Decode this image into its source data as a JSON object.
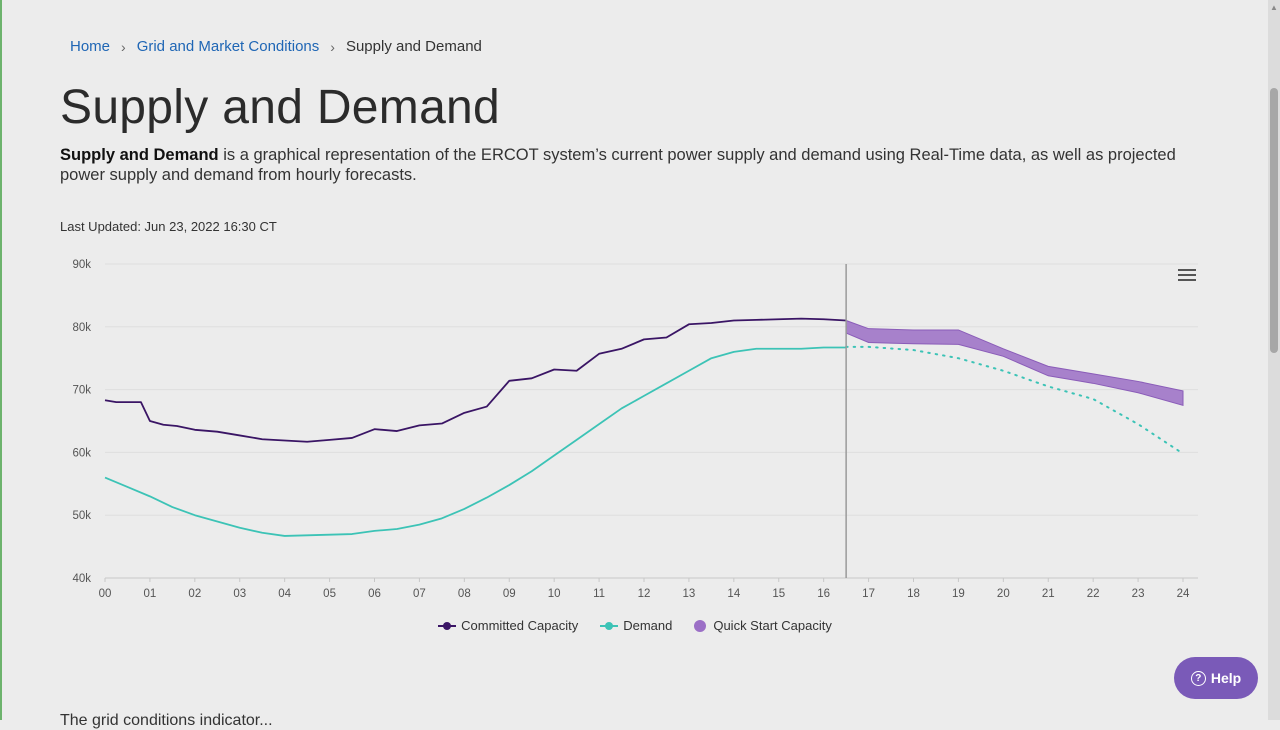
{
  "breadcrumb": {
    "home": "Home",
    "parent": "Grid and Market Conditions",
    "current": "Supply and Demand"
  },
  "page": {
    "title": "Supply and Demand",
    "intro_bold": "Supply and Demand",
    "intro_rest": " is a graphical representation of the ERCOT system’s current power supply and demand using Real-Time data, as well as projected power supply and demand from hourly forecasts.",
    "last_updated": "Last Updated: Jun 23, 2022 16:30 CT",
    "bottom_text": "The   grid conditions indicator...",
    "help_label": "Help"
  },
  "colors": {
    "committed": "#3a1565",
    "demand": "#3cc3b6",
    "quick_start": "#9b6fc6",
    "accent": "#7a5ab8"
  },
  "chart_data": {
    "type": "line",
    "x_ticks": [
      "00",
      "01",
      "02",
      "03",
      "04",
      "05",
      "06",
      "07",
      "08",
      "09",
      "10",
      "11",
      "12",
      "13",
      "14",
      "15",
      "16",
      "17",
      "18",
      "19",
      "20",
      "21",
      "22",
      "23",
      "24"
    ],
    "y_ticks": [
      "40k",
      "50k",
      "60k",
      "70k",
      "80k",
      "90k"
    ],
    "xlim": [
      0,
      24
    ],
    "ylim": [
      40000,
      90000
    ],
    "grid": "horizontal",
    "current_time_hour": 16.5,
    "legend_position": "bottom-center",
    "series": [
      {
        "name": "Committed Capacity",
        "style": "line",
        "color": "#3a1565",
        "x": [
          0,
          0.25,
          0.5,
          0.8,
          1.0,
          1.3,
          1.6,
          2.0,
          2.5,
          3.0,
          3.5,
          4.0,
          4.5,
          5.0,
          5.5,
          6.0,
          6.5,
          7.0,
          7.5,
          8.0,
          8.5,
          9.0,
          9.5,
          10.0,
          10.5,
          11.0,
          11.5,
          12.0,
          12.5,
          13.0,
          13.5,
          14.0,
          14.5,
          15.0,
          15.5,
          16.0,
          16.5
        ],
        "y": [
          68300,
          68000,
          68000,
          68000,
          65000,
          64400,
          64200,
          63600,
          63300,
          62700,
          62100,
          61900,
          61700,
          62000,
          62300,
          63700,
          63400,
          64300,
          64600,
          66300,
          67300,
          71400,
          71800,
          73200,
          73000,
          75700,
          76500,
          78000,
          78300,
          80400,
          80600,
          81000,
          81100,
          81200,
          81300,
          81200,
          81000
        ]
      },
      {
        "name": "Demand",
        "style": "line",
        "color": "#3cc3b6",
        "x": [
          0,
          0.5,
          1.0,
          1.5,
          2.0,
          2.5,
          3.0,
          3.5,
          4.0,
          4.5,
          5.0,
          5.5,
          6.0,
          6.5,
          7.0,
          7.5,
          8.0,
          8.5,
          9.0,
          9.5,
          10.0,
          10.5,
          11.0,
          11.5,
          12.0,
          12.5,
          13.0,
          13.5,
          14.0,
          14.5,
          15.0,
          15.5,
          16.0,
          16.5
        ],
        "y": [
          56000,
          54500,
          53000,
          51300,
          50000,
          49000,
          48000,
          47200,
          46700,
          46800,
          46900,
          47000,
          47500,
          47800,
          48500,
          49500,
          51000,
          52800,
          54800,
          57000,
          59500,
          62000,
          64500,
          67000,
          69000,
          71000,
          73000,
          75000,
          76000,
          76500,
          76500,
          76500,
          76700,
          76700
        ]
      },
      {
        "name": "Demand Forecast",
        "style": "dotted",
        "color": "#3cc3b6",
        "x": [
          16.5,
          17,
          18,
          19,
          20,
          21,
          22,
          23,
          24
        ],
        "y": [
          76800,
          76800,
          76300,
          75000,
          73000,
          70500,
          68500,
          64500,
          59800
        ]
      },
      {
        "name": "Quick Start Capacity",
        "style": "band",
        "color": "#9b6fc6",
        "x": [
          16.5,
          17,
          18,
          19,
          20,
          21,
          22,
          23,
          24
        ],
        "y_low": [
          79000,
          77500,
          77300,
          77200,
          75300,
          72200,
          71000,
          69500,
          67500
        ],
        "y_high": [
          81000,
          79700,
          79500,
          79500,
          76500,
          73700,
          72500,
          71300,
          69800
        ]
      }
    ],
    "legend": [
      {
        "label": "Committed Capacity",
        "color": "#3a1565",
        "kind": "line"
      },
      {
        "label": "Demand",
        "color": "#3cc3b6",
        "kind": "line"
      },
      {
        "label": "Quick Start Capacity",
        "color": "#9b6fc6",
        "kind": "bubble"
      }
    ]
  }
}
